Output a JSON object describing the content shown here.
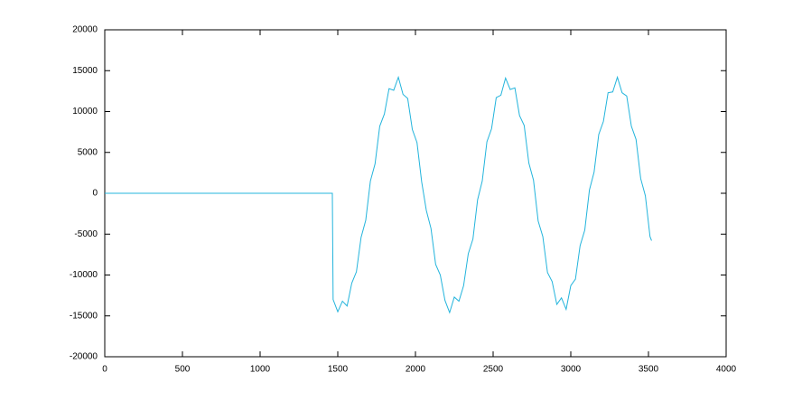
{
  "chart_data": {
    "type": "line",
    "x": [
      0,
      1465,
      1470,
      1500,
      1530,
      1560,
      1590,
      1620,
      1650,
      1680,
      1710,
      1740,
      1770,
      1800,
      1830,
      1860,
      1890,
      1920,
      1950,
      1980,
      2010,
      2040,
      2070,
      2100,
      2130,
      2160,
      2190,
      2220,
      2250,
      2280,
      2310,
      2340,
      2370,
      2400,
      2430,
      2460,
      2490,
      2520,
      2550,
      2580,
      2610,
      2640,
      2670,
      2700,
      2730,
      2760,
      2790,
      2820,
      2850,
      2880,
      2910,
      2940,
      2970,
      3000,
      3030,
      3060,
      3090,
      3120,
      3150,
      3180,
      3210,
      3240,
      3270,
      3300,
      3330,
      3360,
      3390,
      3420,
      3450,
      3480,
      3510,
      3520
    ],
    "series": [
      {
        "color": "#23b4dc",
        "values": [
          0,
          0,
          -13000,
          -14500,
          -13200,
          -13800,
          -11000,
          -9600,
          -5400,
          -3300,
          1500,
          3600,
          8200,
          9700,
          12800,
          12600,
          14200,
          12100,
          11600,
          7800,
          6200,
          1400,
          -2100,
          -4300,
          -8700,
          -10000,
          -13100,
          -14600,
          -12700,
          -13200,
          -11300,
          -7400,
          -5600,
          -800,
          1500,
          6300,
          7900,
          11700,
          12000,
          14100,
          12700,
          12900,
          9500,
          8300,
          3700,
          1600,
          -3400,
          -5300,
          -9700,
          -10800,
          -13600,
          -12800,
          -14200,
          -11300,
          -10500,
          -6400,
          -4500,
          400,
          2600,
          7200,
          8800,
          12300,
          12400,
          14200,
          12300,
          11900,
          8200,
          6600,
          1800,
          -300,
          -5300,
          -5800
        ]
      }
    ],
    "xlim": [
      0,
      4000
    ],
    "xticks": [
      0,
      500,
      1000,
      1500,
      2000,
      2500,
      3000,
      3500,
      4000
    ],
    "ylim": [
      -20000,
      20000
    ],
    "yticks": [
      -20000,
      -15000,
      -10000,
      -5000,
      0,
      5000,
      10000,
      15000,
      20000
    ]
  }
}
